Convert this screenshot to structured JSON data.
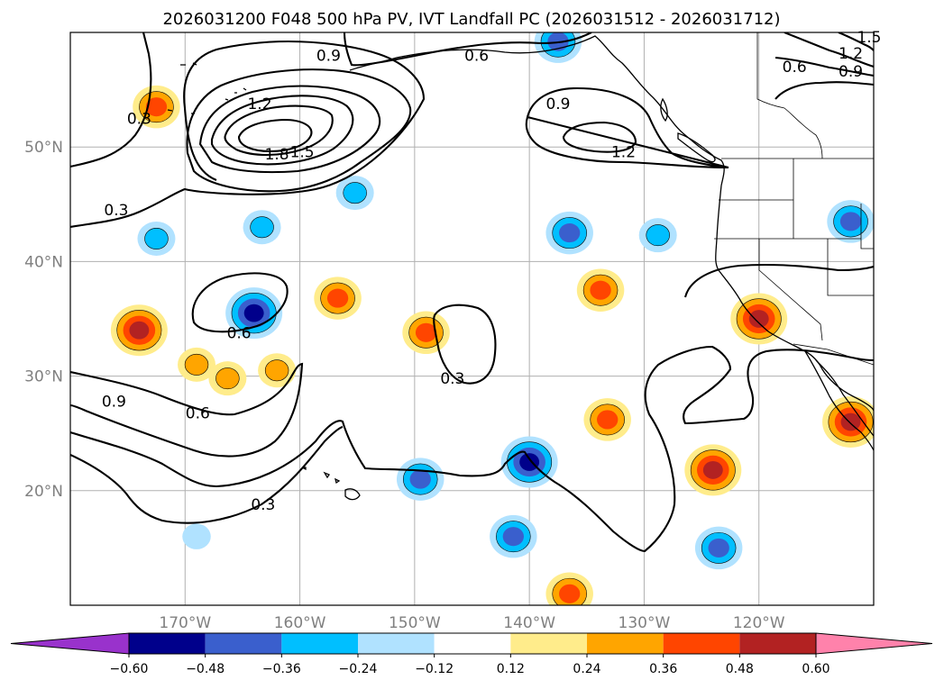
{
  "chart_data": {
    "type": "map-contour",
    "title": "2026031200 F048 500 hPa PV, IVT Landfall PC (2026031512 - 2026031712)",
    "xaxis": {
      "range": [
        -180,
        -110
      ],
      "ticks": [
        -170,
        -160,
        -150,
        -140,
        -130,
        -120
      ],
      "tick_labels": [
        "170°W",
        "160°W",
        "150°W",
        "140°W",
        "130°W",
        "120°W"
      ]
    },
    "yaxis": {
      "range": [
        10,
        60
      ],
      "ticks": [
        20,
        30,
        40,
        50
      ],
      "tick_labels": [
        "20°N",
        "30°N",
        "40°N",
        "50°N"
      ]
    },
    "grid": true,
    "pv_contours": {
      "levels": [
        0.3,
        0.6,
        0.9,
        1.2,
        1.5,
        1.8
      ],
      "labels": [
        {
          "text": "0.3",
          "lon": -174,
          "lat": 52.5
        },
        {
          "text": "0.3",
          "lon": -176,
          "lat": 44.5
        },
        {
          "text": "0.6",
          "lon": -144.6,
          "lat": 58
        },
        {
          "text": "0.9",
          "lon": -157.5,
          "lat": 58
        },
        {
          "text": "1.2",
          "lon": -163.5,
          "lat": 53.8
        },
        {
          "text": "1.8",
          "lon": -162,
          "lat": 49.4
        },
        {
          "text": "1.5",
          "lon": -159.8,
          "lat": 49.6
        },
        {
          "text": "0.9",
          "lon": -137.5,
          "lat": 53.8
        },
        {
          "text": "1.2",
          "lon": -131.8,
          "lat": 49.6
        },
        {
          "text": "0.6",
          "lon": -116.9,
          "lat": 57
        },
        {
          "text": "0.9",
          "lon": -112,
          "lat": 56.6
        },
        {
          "text": "1.2",
          "lon": -112,
          "lat": 58.2
        },
        {
          "text": "1.5",
          "lon": -110.4,
          "lat": 59.6
        },
        {
          "text": "0.6",
          "lon": -165.3,
          "lat": 33.8
        },
        {
          "text": "0.9",
          "lon": -176.2,
          "lat": 27.8
        },
        {
          "text": "0.6",
          "lon": -168.9,
          "lat": 26.8
        },
        {
          "text": "0.3",
          "lon": -163.2,
          "lat": 18.8
        },
        {
          "text": "0.3",
          "lon": -146.7,
          "lat": 29.8
        }
      ]
    },
    "ivt_pc_colorbar": {
      "levels": [
        -0.6,
        -0.48,
        -0.36,
        -0.24,
        -0.12,
        0.12,
        0.24,
        0.36,
        0.48,
        0.6
      ],
      "tick_labels": [
        "−0.60",
        "−0.48",
        "−0.36",
        "−0.24",
        "−0.12",
        "0.12",
        "0.24",
        "0.36",
        "0.48",
        "0.60"
      ],
      "colors": [
        "#9932cc",
        "#00008b",
        "#3a5fcd",
        "#00bfff",
        "#b0e2ff",
        "#ffffff",
        "#ffec8b",
        "#ffa500",
        "#ff4500",
        "#b22222",
        "#ff82ab"
      ],
      "extend": "both"
    },
    "ivt_pc_features": [
      {
        "sign": "positive",
        "peak": 0.36,
        "lon": -172.5,
        "lat": 53.5
      },
      {
        "sign": "positive",
        "peak": 0.48,
        "lon": -174,
        "lat": 34
      },
      {
        "sign": "positive",
        "peak": 0.24,
        "lon": -169,
        "lat": 31
      },
      {
        "sign": "positive",
        "peak": 0.24,
        "lon": -166.3,
        "lat": 29.8
      },
      {
        "sign": "positive",
        "peak": 0.24,
        "lon": -162,
        "lat": 30.5
      },
      {
        "sign": "positive",
        "peak": 0.36,
        "lon": -156.7,
        "lat": 36.8
      },
      {
        "sign": "positive",
        "peak": 0.36,
        "lon": -149,
        "lat": 33.8
      },
      {
        "sign": "positive",
        "peak": 0.36,
        "lon": -133.8,
        "lat": 37.5
      },
      {
        "sign": "positive",
        "peak": 0.36,
        "lon": -133.2,
        "lat": 26.2
      },
      {
        "sign": "positive",
        "peak": 0.48,
        "lon": -120,
        "lat": 35
      },
      {
        "sign": "positive",
        "peak": 0.48,
        "lon": -112,
        "lat": 26
      },
      {
        "sign": "positive",
        "peak": 0.48,
        "lon": -124,
        "lat": 21.8
      },
      {
        "sign": "positive",
        "peak": 0.36,
        "lon": -136.5,
        "lat": 11
      },
      {
        "sign": "negative",
        "peak": -0.48,
        "lon": -164,
        "lat": 35.5
      },
      {
        "sign": "negative",
        "peak": -0.36,
        "lon": -136.5,
        "lat": 42.5
      },
      {
        "sign": "negative",
        "peak": -0.24,
        "lon": -128.8,
        "lat": 42.3
      },
      {
        "sign": "negative",
        "peak": -0.24,
        "lon": -172.5,
        "lat": 42
      },
      {
        "sign": "negative",
        "peak": -0.24,
        "lon": -163.3,
        "lat": 43
      },
      {
        "sign": "negative",
        "peak": -0.24,
        "lon": -155.2,
        "lat": 46
      },
      {
        "sign": "negative",
        "peak": -0.36,
        "lon": -112,
        "lat": 43.5
      },
      {
        "sign": "negative",
        "peak": -0.48,
        "lon": -140,
        "lat": 22.5
      },
      {
        "sign": "negative",
        "peak": -0.36,
        "lon": -149.5,
        "lat": 21
      },
      {
        "sign": "negative",
        "peak": -0.36,
        "lon": -141.4,
        "lat": 16
      },
      {
        "sign": "negative",
        "peak": -0.12,
        "lon": -169,
        "lat": 16
      },
      {
        "sign": "negative",
        "peak": -0.36,
        "lon": -123.5,
        "lat": 15
      },
      {
        "sign": "negative",
        "peak": -0.36,
        "lon": -137.5,
        "lat": 59.2
      }
    ]
  }
}
